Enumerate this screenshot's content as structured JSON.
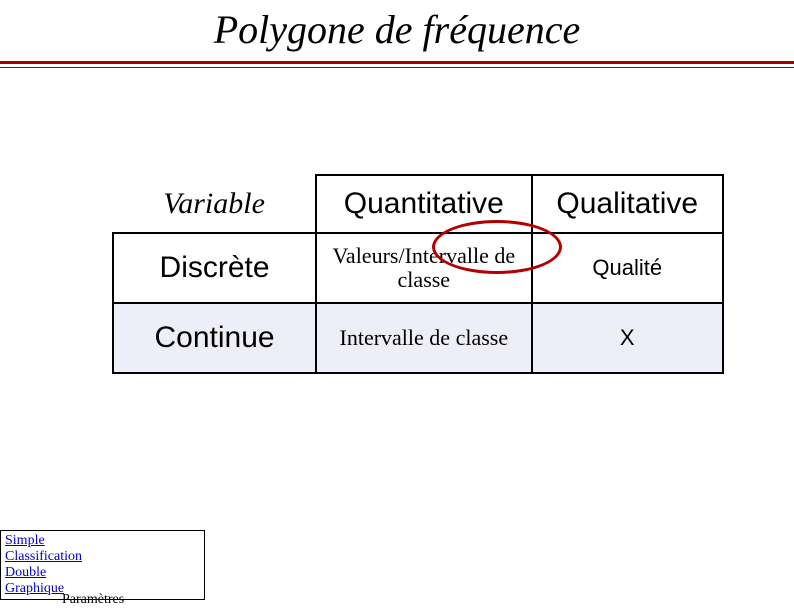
{
  "title": "Polygone de fréquence",
  "rule_colors": {
    "thick": "#a00000",
    "thin": "#a00000"
  },
  "table": {
    "header": {
      "variable": "Variable",
      "quantitative": "Quantitative",
      "qualitative": "Qualitative"
    },
    "rows": [
      {
        "label": "Discrète",
        "quantitative": "Valeurs/Intervalle de classe",
        "qualitative": "Qualité",
        "shaded": false
      },
      {
        "label": "Continue",
        "quantitative": "Intervalle de classe",
        "qualitative": "X",
        "shaded": true
      }
    ],
    "border_color": "#000000",
    "shaded_bg": "#eeeef8",
    "header_fontsize": 30,
    "cell_fontsize": 22
  },
  "ellipse": {
    "color": "#b40000",
    "stroke_width": 3
  },
  "nav": {
    "items": [
      "Simple",
      "Classification",
      "Double",
      "Graphique"
    ],
    "below": "Paramètres"
  }
}
